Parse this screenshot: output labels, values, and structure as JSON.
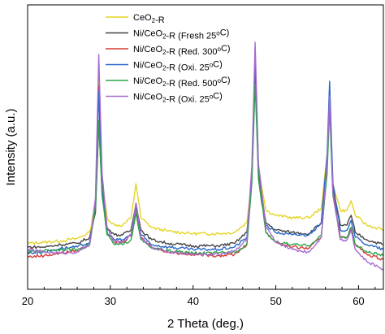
{
  "chart_data": {
    "type": "line",
    "title": "",
    "xlabel": "2 Theta (deg.)",
    "ylabel": "Intensity (a.u.)",
    "xlim": [
      20,
      63
    ],
    "ylim": [
      0,
      100
    ],
    "xticks": [
      20,
      30,
      40,
      50,
      60
    ],
    "x_tick_labels": [
      "20",
      "30",
      "40",
      "50",
      "60"
    ],
    "legend_position": "top-center",
    "grid": false,
    "series": [
      {
        "legend_main": "CeO",
        "legend_sub": "2",
        "legend_post": "-R",
        "legend_super": "",
        "color": "#e5d425",
        "points": [
          [
            20,
            13.5
          ],
          [
            22,
            14
          ],
          [
            24,
            14.5
          ],
          [
            26,
            15.5
          ],
          [
            27.5,
            18
          ],
          [
            28.2,
            30
          ],
          [
            28.6,
            85
          ],
          [
            29,
            40
          ],
          [
            29.6,
            24
          ],
          [
            30.5,
            21
          ],
          [
            31.5,
            21
          ],
          [
            32.5,
            24
          ],
          [
            33.1,
            38
          ],
          [
            33.7,
            24
          ],
          [
            35,
            20
          ],
          [
            37,
            18.5
          ],
          [
            40,
            17.5
          ],
          [
            43,
            17.5
          ],
          [
            45,
            18
          ],
          [
            46.5,
            22
          ],
          [
            47.1,
            40
          ],
          [
            47.5,
            90
          ],
          [
            47.9,
            45
          ],
          [
            48.8,
            27
          ],
          [
            50,
            25
          ],
          [
            52,
            24
          ],
          [
            54,
            24
          ],
          [
            55.5,
            28
          ],
          [
            56.2,
            50
          ],
          [
            56.5,
            68
          ],
          [
            56.9,
            38
          ],
          [
            57.8,
            27
          ],
          [
            58.6,
            27
          ],
          [
            59.1,
            31
          ],
          [
            59.6,
            25
          ],
          [
            61,
            21
          ],
          [
            63,
            19
          ]
        ]
      },
      {
        "legend_main": "Ni/CeO",
        "legend_sub": "2",
        "legend_post": "-R (Fresh 25",
        "legend_super": "o",
        "legend_tail": "C)",
        "color": "#444444",
        "points": [
          [
            20,
            12
          ],
          [
            22,
            12
          ],
          [
            24,
            13
          ],
          [
            26,
            13.5
          ],
          [
            27.5,
            16
          ],
          [
            28.2,
            26
          ],
          [
            28.6,
            63
          ],
          [
            29,
            35
          ],
          [
            29.6,
            20
          ],
          [
            30.5,
            17
          ],
          [
            31.5,
            17
          ],
          [
            32.5,
            19
          ],
          [
            33.1,
            30
          ],
          [
            33.7,
            19
          ],
          [
            35,
            15
          ],
          [
            37,
            13.5
          ],
          [
            40,
            12.5
          ],
          [
            43,
            12.5
          ],
          [
            45,
            13.5
          ],
          [
            46.5,
            18
          ],
          [
            47.1,
            40
          ],
          [
            47.5,
            82
          ],
          [
            47.9,
            42
          ],
          [
            48.8,
            22
          ],
          [
            50,
            19
          ],
          [
            52,
            18
          ],
          [
            54,
            17.5
          ],
          [
            55.5,
            22
          ],
          [
            56.2,
            48
          ],
          [
            56.5,
            72
          ],
          [
            56.9,
            36
          ],
          [
            57.8,
            21
          ],
          [
            58.6,
            21
          ],
          [
            59.1,
            25
          ],
          [
            59.6,
            18
          ],
          [
            61,
            15
          ],
          [
            63,
            13
          ]
        ]
      },
      {
        "legend_main": "Ni/CeO",
        "legend_sub": "2",
        "legend_post": "-R (Red. 300",
        "legend_super": "o",
        "legend_tail": "C)",
        "color": "#d63a35",
        "points": [
          [
            20,
            8
          ],
          [
            22,
            8.5
          ],
          [
            24,
            9.5
          ],
          [
            26,
            10.5
          ],
          [
            27.5,
            13
          ],
          [
            28.2,
            30
          ],
          [
            28.6,
            78
          ],
          [
            29,
            38
          ],
          [
            29.6,
            18
          ],
          [
            30.5,
            14
          ],
          [
            31.5,
            14
          ],
          [
            32.5,
            16.5
          ],
          [
            33.1,
            28
          ],
          [
            33.7,
            16
          ],
          [
            35,
            12
          ],
          [
            37,
            10
          ],
          [
            40,
            9
          ],
          [
            43,
            8.5
          ],
          [
            45,
            9
          ],
          [
            46.5,
            13
          ],
          [
            47.1,
            40
          ],
          [
            47.5,
            90
          ],
          [
            47.9,
            42
          ],
          [
            48.8,
            18
          ],
          [
            50,
            14
          ],
          [
            52,
            12
          ],
          [
            54,
            11.5
          ],
          [
            55.5,
            16
          ],
          [
            56.2,
            45
          ],
          [
            56.5,
            73
          ],
          [
            56.9,
            35
          ],
          [
            57.8,
            16
          ],
          [
            58.6,
            16
          ],
          [
            59.1,
            20
          ],
          [
            59.6,
            13
          ],
          [
            61,
            9
          ],
          [
            63,
            7
          ]
        ]
      },
      {
        "legend_main": "Ni/CeO",
        "legend_sub": "2",
        "legend_post": "-R (Oxi. 25",
        "legend_super": "o",
        "legend_tail": "C)",
        "color": "#2866c9",
        "points": [
          [
            20,
            9.5
          ],
          [
            22,
            10
          ],
          [
            24,
            11.5
          ],
          [
            26,
            12
          ],
          [
            27.5,
            14
          ],
          [
            28.2,
            28
          ],
          [
            28.6,
            76
          ],
          [
            29,
            36
          ],
          [
            29.6,
            18
          ],
          [
            30.5,
            15
          ],
          [
            31.5,
            15
          ],
          [
            32.5,
            17
          ],
          [
            33.1,
            29
          ],
          [
            33.7,
            17
          ],
          [
            35,
            13
          ],
          [
            37,
            12
          ],
          [
            40,
            11
          ],
          [
            43,
            11
          ],
          [
            45,
            12
          ],
          [
            46.5,
            16
          ],
          [
            47.1,
            42
          ],
          [
            47.5,
            89
          ],
          [
            47.9,
            44
          ],
          [
            48.8,
            21
          ],
          [
            50,
            18
          ],
          [
            52,
            17
          ],
          [
            54,
            17
          ],
          [
            55.5,
            22
          ],
          [
            56.2,
            50
          ],
          [
            56.5,
            80
          ],
          [
            56.9,
            38
          ],
          [
            57.8,
            19
          ],
          [
            58.6,
            19
          ],
          [
            59.1,
            23
          ],
          [
            59.6,
            16
          ],
          [
            61,
            13
          ],
          [
            63,
            11
          ]
        ]
      },
      {
        "legend_main": "Ni/CeO",
        "legend_sub": "2",
        "legend_post": "-R (Red. 500",
        "legend_super": "o",
        "legend_tail": "C)",
        "color": "#2ca54a",
        "points": [
          [
            20,
            10
          ],
          [
            22,
            10.5
          ],
          [
            24,
            11
          ],
          [
            26,
            11
          ],
          [
            27.5,
            13
          ],
          [
            28.2,
            28
          ],
          [
            28.6,
            64
          ],
          [
            29,
            33
          ],
          [
            29.6,
            17
          ],
          [
            30.5,
            13
          ],
          [
            31.5,
            13
          ],
          [
            32.5,
            15
          ],
          [
            33.1,
            26
          ],
          [
            33.7,
            15
          ],
          [
            35,
            11.5
          ],
          [
            37,
            10.5
          ],
          [
            40,
            9.5
          ],
          [
            43,
            9.5
          ],
          [
            45,
            10
          ],
          [
            46.5,
            13
          ],
          [
            47.1,
            38
          ],
          [
            47.5,
            79
          ],
          [
            47.9,
            40
          ],
          [
            48.8,
            18
          ],
          [
            50,
            14
          ],
          [
            52,
            13
          ],
          [
            54,
            12.5
          ],
          [
            55.5,
            17
          ],
          [
            56.2,
            42
          ],
          [
            56.5,
            69
          ],
          [
            56.9,
            33
          ],
          [
            57.8,
            16
          ],
          [
            58.6,
            16
          ],
          [
            59.1,
            20
          ],
          [
            59.6,
            13
          ],
          [
            61,
            10
          ],
          [
            63,
            8.5
          ]
        ]
      },
      {
        "legend_main": "Ni/CeO",
        "legend_sub": "2",
        "legend_post": "-R (Oxi. 25",
        "legend_super": "o",
        "legend_tail": "C)",
        "color": "#a66ad0",
        "points": [
          [
            20,
            11
          ],
          [
            22,
            10
          ],
          [
            24,
            9.5
          ],
          [
            26,
            10
          ],
          [
            27.5,
            13
          ],
          [
            28.2,
            32
          ],
          [
            28.6,
            91
          ],
          [
            29,
            42
          ],
          [
            29.6,
            20
          ],
          [
            30.5,
            14
          ],
          [
            31.5,
            14
          ],
          [
            32.5,
            17
          ],
          [
            33.1,
            30
          ],
          [
            33.7,
            16
          ],
          [
            35,
            12
          ],
          [
            37,
            10
          ],
          [
            40,
            9
          ],
          [
            43,
            9
          ],
          [
            45,
            10.5
          ],
          [
            46.5,
            15
          ],
          [
            47.1,
            45
          ],
          [
            47.5,
            96
          ],
          [
            47.9,
            46
          ],
          [
            48.8,
            20
          ],
          [
            50,
            14
          ],
          [
            52,
            11
          ],
          [
            54,
            10
          ],
          [
            55.5,
            16
          ],
          [
            56.2,
            48
          ],
          [
            56.5,
            74
          ],
          [
            56.9,
            34
          ],
          [
            57.8,
            15
          ],
          [
            58.6,
            15
          ],
          [
            59.1,
            19
          ],
          [
            59.6,
            11
          ],
          [
            61,
            6
          ],
          [
            63,
            3
          ]
        ]
      }
    ]
  }
}
